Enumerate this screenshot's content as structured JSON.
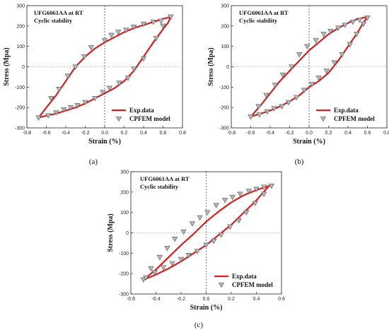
{
  "colors": {
    "curve": "#d81e1e",
    "marker_fill": "#b8b8b8",
    "marker_stroke": "#555555"
  },
  "chart_data": [
    {
      "type": "line",
      "panel_label": "(a)",
      "title_line1": "UFG6061AA  at RT",
      "title_line2": "Cyclic stability",
      "xlabel": "Strain (%)",
      "ylabel": "Stress (Mpa)",
      "xlim": [
        -0.8,
        0.8
      ],
      "ylim": [
        -300,
        300
      ],
      "xticks": [
        "-0.8",
        "-0.6",
        "-0.4",
        "-0.2",
        "0.0",
        "0.2",
        "0.4",
        "0.6",
        "0.8"
      ],
      "yticks": [
        "-300",
        "-200",
        "-100",
        "0",
        "100",
        "200",
        "300"
      ],
      "legend": [
        "Exp.data",
        "CPFEM model"
      ],
      "series": [
        {
          "name": "Exp.data",
          "x": [
            -0.68,
            -0.6,
            -0.5,
            -0.4,
            -0.3,
            -0.2,
            -0.1,
            0.0,
            0.1,
            0.2,
            0.3,
            0.4,
            0.5,
            0.6,
            0.68,
            0.65,
            0.6,
            0.5,
            0.4,
            0.3,
            0.2,
            0.1,
            0.0,
            -0.1,
            -0.2,
            -0.3,
            -0.4,
            -0.5,
            -0.6,
            -0.68
          ],
          "y": [
            -250,
            -200,
            -140,
            -70,
            0,
            50,
            90,
            120,
            145,
            170,
            190,
            205,
            220,
            235,
            245,
            215,
            185,
            120,
            50,
            -20,
            -70,
            -105,
            -130,
            -155,
            -180,
            -200,
            -215,
            -230,
            -240,
            -250
          ]
        },
        {
          "name": "CPFEM model",
          "x": [
            -0.68,
            -0.55,
            -0.47,
            -0.38,
            -0.3,
            -0.21,
            -0.14,
            0.0,
            0.07,
            0.14,
            0.22,
            0.3,
            0.4,
            0.5,
            0.58,
            0.68,
            0.6,
            0.53,
            0.4,
            0.3,
            0.24,
            0.15,
            0.05,
            -0.02,
            -0.1,
            -0.2,
            -0.28,
            -0.35,
            -0.42,
            -0.5,
            -0.58
          ],
          "y": [
            -250,
            -155,
            -110,
            -45,
            0,
            50,
            95,
            130,
            155,
            170,
            180,
            195,
            210,
            220,
            225,
            245,
            200,
            140,
            40,
            -10,
            -55,
            -80,
            -105,
            -125,
            -155,
            -175,
            -190,
            -200,
            -210,
            -225,
            -240
          ]
        }
      ]
    },
    {
      "type": "line",
      "panel_label": "(b)",
      "title_line1": "UFG6061AA  at RT",
      "title_line2": "Cyclic stability",
      "xlabel": "Strain (%)",
      "ylabel": "Stress (Mpa)",
      "xlim": [
        -0.8,
        0.8
      ],
      "ylim": [
        -300,
        300
      ],
      "xticks": [
        "-0.8",
        "-0.6",
        "-0.4",
        "-0.2",
        "0.0",
        "0.2",
        "0.4",
        "0.6",
        "0.8"
      ],
      "yticks": [
        "-300",
        "-200",
        "-100",
        "0",
        "100",
        "200",
        "300"
      ],
      "legend": [
        "Exp.data",
        "CPFEM model"
      ],
      "series": [
        {
          "name": "Exp.data",
          "x": [
            -0.6,
            -0.5,
            -0.4,
            -0.3,
            -0.2,
            -0.1,
            0.0,
            0.1,
            0.2,
            0.3,
            0.4,
            0.5,
            0.6,
            0.55,
            0.5,
            0.4,
            0.3,
            0.2,
            0.1,
            0.0,
            -0.1,
            -0.2,
            -0.3,
            -0.4,
            -0.5,
            -0.6
          ],
          "y": [
            -245,
            -190,
            -130,
            -70,
            -20,
            30,
            80,
            120,
            160,
            190,
            215,
            235,
            245,
            210,
            170,
            100,
            30,
            -30,
            -70,
            -100,
            -140,
            -170,
            -195,
            -215,
            -230,
            -245
          ]
        },
        {
          "name": "CPFEM model",
          "x": [
            -0.6,
            -0.52,
            -0.44,
            -0.35,
            -0.27,
            -0.18,
            -0.1,
            -0.02,
            0.07,
            0.15,
            0.22,
            0.3,
            0.37,
            0.45,
            0.52,
            0.6,
            0.56,
            0.49,
            0.42,
            0.34,
            0.26,
            0.18,
            0.1,
            0.03,
            -0.05,
            -0.13,
            -0.21,
            -0.28,
            -0.36,
            -0.43,
            -0.51
          ],
          "y": [
            -245,
            -195,
            -140,
            -90,
            -40,
            0,
            60,
            100,
            130,
            160,
            175,
            190,
            205,
            220,
            230,
            240,
            210,
            160,
            110,
            60,
            20,
            -20,
            -55,
            -85,
            -115,
            -150,
            -175,
            -195,
            -205,
            -220,
            -235
          ]
        }
      ]
    },
    {
      "type": "line",
      "panel_label": "(c)",
      "title_line1": "UFG6061AA  at RT",
      "title_line2": "Cyclic stability",
      "xlabel": "Strain (%)",
      "ylabel": "Stress (Mpa)",
      "xlim": [
        -0.6,
        0.6
      ],
      "ylim": [
        -300,
        300
      ],
      "xticks": [
        "-0.6",
        "-0.4",
        "-0.2",
        "0.0",
        "0.2",
        "0.4",
        "0.6"
      ],
      "yticks": [
        "-300",
        "-200",
        "-100",
        "0",
        "100",
        "200",
        "300"
      ],
      "legend": [
        "Exp.data",
        "CPFEM model"
      ],
      "series": [
        {
          "name": "Exp.data",
          "x": [
            -0.5,
            -0.4,
            -0.3,
            -0.2,
            -0.1,
            0.0,
            0.1,
            0.2,
            0.3,
            0.4,
            0.5,
            0.45,
            0.4,
            0.3,
            0.2,
            0.1,
            0.0,
            -0.1,
            -0.2,
            -0.3,
            -0.4,
            -0.5
          ],
          "y": [
            -230,
            -180,
            -120,
            -60,
            -5,
            55,
            105,
            150,
            185,
            210,
            230,
            195,
            160,
            100,
            40,
            -10,
            -60,
            -100,
            -140,
            -175,
            -205,
            -230
          ]
        },
        {
          "name": "CPFEM model",
          "x": [
            -0.5,
            -0.44,
            -0.37,
            -0.31,
            -0.25,
            -0.18,
            -0.11,
            -0.05,
            0.01,
            0.08,
            0.15,
            0.21,
            0.27,
            0.34,
            0.4,
            0.46,
            0.52,
            0.46,
            0.39,
            0.32,
            0.26,
            0.19,
            0.12,
            0.06,
            0.0,
            -0.07,
            -0.14,
            -0.2,
            -0.27,
            -0.34,
            -0.41,
            -0.48
          ],
          "y": [
            -230,
            -175,
            -120,
            -75,
            -30,
            5,
            45,
            75,
            100,
            135,
            160,
            175,
            190,
            205,
            215,
            225,
            230,
            190,
            145,
            100,
            60,
            30,
            -10,
            -40,
            -60,
            -90,
            -110,
            -130,
            -150,
            -170,
            -195,
            -220
          ]
        }
      ]
    }
  ]
}
